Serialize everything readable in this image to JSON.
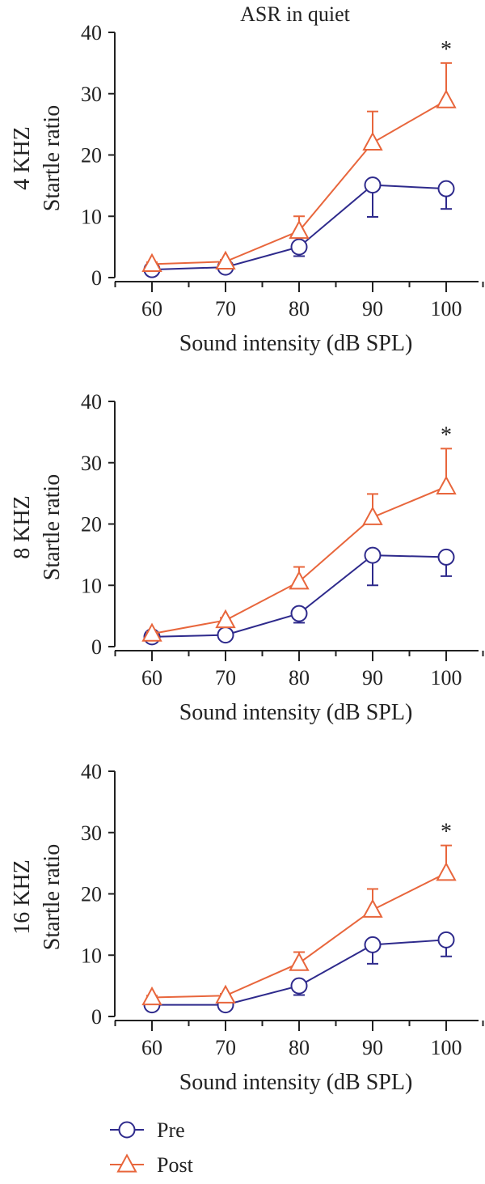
{
  "figure_title": "ASR in quiet",
  "colors": {
    "pre": "#2e2a8c",
    "post": "#e8663c",
    "axis": "#222222"
  },
  "legend": [
    {
      "label": "Pre",
      "marker": "circle",
      "color": "#2e2a8c"
    },
    {
      "label": "Post",
      "marker": "triangle",
      "color": "#e8663c"
    }
  ],
  "chart_data": [
    {
      "type": "line",
      "panel_label": "4 KHZ",
      "ylabel": "Startle ratio",
      "xlabel": "Sound intensity (dB SPL)",
      "x": [
        60,
        70,
        80,
        90,
        100
      ],
      "xticks": [
        "60",
        "70",
        "80",
        "90",
        "100"
      ],
      "xlim": [
        55,
        105
      ],
      "ylim": [
        0,
        40
      ],
      "yticks": [
        "0",
        "10",
        "20",
        "30",
        "40"
      ],
      "series": [
        {
          "name": "Pre",
          "values": [
            1.3,
            1.7,
            5.0,
            15.1,
            14.5
          ],
          "err": [
            0.4,
            0.3,
            1.5,
            5.2,
            3.3
          ],
          "err_dir": "down"
        },
        {
          "name": "Post",
          "values": [
            2.2,
            2.6,
            7.6,
            22.0,
            28.9
          ],
          "err": [
            0.3,
            0.3,
            2.4,
            5.1,
            6.1
          ],
          "err_dir": "up"
        }
      ],
      "annotation": {
        "text": "*",
        "x": 100
      }
    },
    {
      "type": "line",
      "panel_label": "8 KHZ",
      "ylabel": "Startle ratio",
      "xlabel": "Sound intensity (dB SPL)",
      "x": [
        60,
        70,
        80,
        90,
        100
      ],
      "xticks": [
        "60",
        "70",
        "80",
        "90",
        "100"
      ],
      "xlim": [
        55,
        105
      ],
      "ylim": [
        0,
        40
      ],
      "yticks": [
        "0",
        "10",
        "20",
        "30",
        "40"
      ],
      "series": [
        {
          "name": "Pre",
          "values": [
            1.6,
            1.9,
            5.4,
            14.9,
            14.6
          ],
          "err": [
            0.3,
            0.3,
            1.5,
            4.9,
            3.1
          ],
          "err_dir": "down"
        },
        {
          "name": "Post",
          "values": [
            2.1,
            4.3,
            10.6,
            21.1,
            26.1
          ],
          "err": [
            0.3,
            0.4,
            2.4,
            3.8,
            6.2
          ],
          "err_dir": "up"
        }
      ],
      "annotation": {
        "text": "*",
        "x": 100
      }
    },
    {
      "type": "line",
      "panel_label": "16 KHZ",
      "ylabel": "Startle ratio",
      "xlabel": "Sound intensity (dB SPL)",
      "x": [
        60,
        70,
        80,
        90,
        100
      ],
      "xticks": [
        "60",
        "70",
        "80",
        "90",
        "100"
      ],
      "xlim": [
        55,
        105
      ],
      "ylim": [
        0,
        40
      ],
      "yticks": [
        "0",
        "10",
        "20",
        "30",
        "40"
      ],
      "series": [
        {
          "name": "Pre",
          "values": [
            1.9,
            1.9,
            5.0,
            11.7,
            12.5
          ],
          "err": [
            0.3,
            0.3,
            1.5,
            3.1,
            2.7
          ],
          "err_dir": "down"
        },
        {
          "name": "Post",
          "values": [
            3.1,
            3.4,
            8.7,
            17.4,
            23.4
          ],
          "err": [
            0.3,
            0.3,
            1.8,
            3.4,
            4.5
          ],
          "err_dir": "up"
        }
      ],
      "annotation": {
        "text": "*",
        "x": 100
      }
    }
  ]
}
